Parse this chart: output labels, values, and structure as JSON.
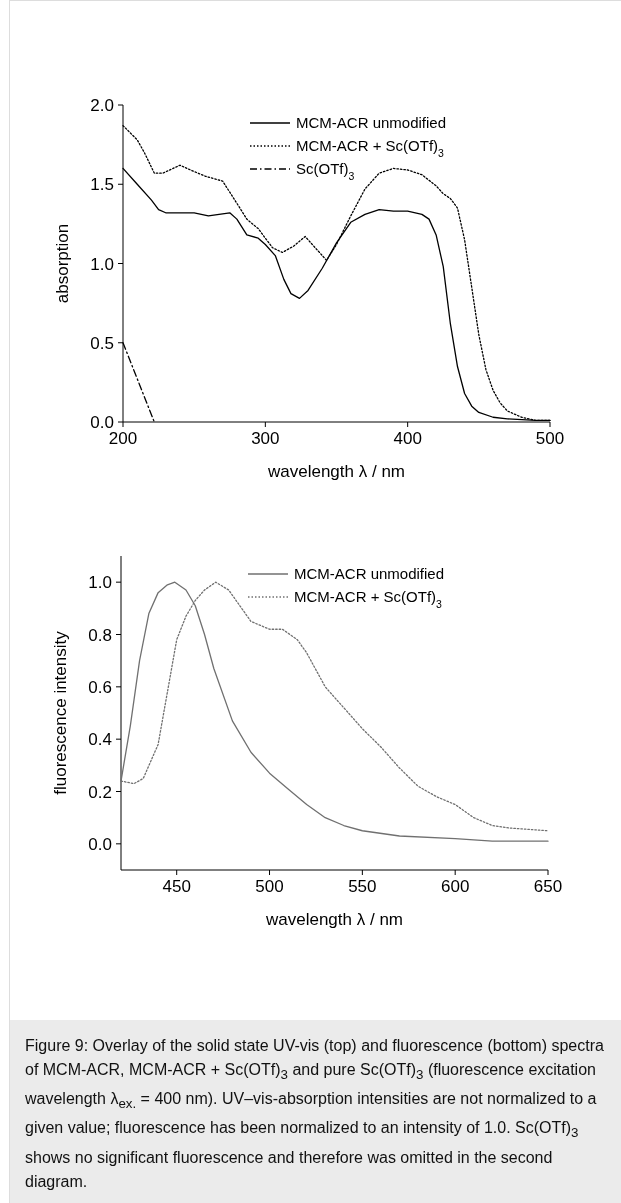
{
  "chart_data": [
    {
      "type": "line",
      "xlabel": "wavelength λ / nm",
      "ylabel": "absorption",
      "xlim": [
        200,
        500
      ],
      "ylim": [
        0,
        2.0
      ],
      "xticks": [
        200,
        300,
        400,
        500
      ],
      "yticks": [
        {
          "value": 0,
          "label": "0.0"
        },
        {
          "value": 0.5,
          "label": "0.5"
        },
        {
          "value": 1,
          "label": "1.0"
        },
        {
          "value": 1.5,
          "label": "1.5"
        },
        {
          "value": 2,
          "label": "2.0"
        }
      ],
      "legend": "top right",
      "grid": false,
      "series": [
        {
          "name": "MCM-ACR unmodified",
          "color": "#000000",
          "line_style": "solid",
          "x": [
            200,
            210,
            220,
            225,
            230,
            250,
            260,
            275,
            280,
            287,
            295,
            300,
            307,
            313,
            318,
            324,
            330,
            340,
            350,
            360,
            370,
            380,
            390,
            400,
            410,
            415,
            420,
            425,
            430,
            435,
            440,
            445,
            450,
            460,
            470,
            490,
            500
          ],
          "values": [
            1.6,
            1.5,
            1.4,
            1.34,
            1.32,
            1.32,
            1.3,
            1.32,
            1.28,
            1.18,
            1.16,
            1.12,
            1.05,
            0.9,
            0.81,
            0.78,
            0.83,
            0.97,
            1.13,
            1.26,
            1.31,
            1.34,
            1.33,
            1.33,
            1.31,
            1.28,
            1.18,
            0.98,
            0.62,
            0.35,
            0.18,
            0.1,
            0.06,
            0.03,
            0.02,
            0.01,
            0.01
          ]
        },
        {
          "name": "MCM-ACR + Sc(OTf)$_{3}$",
          "color": "#000000",
          "line_style": "dotted",
          "x": [
            200,
            210,
            215,
            222,
            228,
            240,
            250,
            258,
            270,
            280,
            287,
            295,
            305,
            312,
            320,
            328,
            335,
            343,
            350,
            360,
            370,
            380,
            390,
            400,
            410,
            420,
            425,
            430,
            435,
            440,
            445,
            450,
            455,
            460,
            465,
            470,
            480,
            490,
            500
          ],
          "values": [
            1.87,
            1.78,
            1.7,
            1.57,
            1.57,
            1.62,
            1.58,
            1.55,
            1.52,
            1.38,
            1.28,
            1.22,
            1.1,
            1.07,
            1.11,
            1.17,
            1.1,
            1.02,
            1.12,
            1.3,
            1.47,
            1.57,
            1.6,
            1.59,
            1.56,
            1.49,
            1.44,
            1.41,
            1.35,
            1.15,
            0.85,
            0.55,
            0.33,
            0.2,
            0.12,
            0.07,
            0.03,
            0.01,
            0.01
          ]
        },
        {
          "name": "Sc(OTf)$_{3}$",
          "color": "#000000",
          "line_style": "dashed",
          "x": [
            200,
            222
          ],
          "values": [
            0.5,
            0.0
          ]
        }
      ]
    },
    {
      "type": "line",
      "xlabel": "wavelength λ / nm",
      "ylabel": "fluorescence intensity",
      "xlim": [
        420,
        650
      ],
      "ylim": [
        -0.1,
        1.1
      ],
      "xticks": [
        450,
        500,
        550,
        600,
        650
      ],
      "yticks": [
        {
          "value": 0,
          "label": "0.0"
        },
        {
          "value": 0.2,
          "label": "0.2"
        },
        {
          "value": 0.4,
          "label": "0.4"
        },
        {
          "value": 0.6,
          "label": "0.6"
        },
        {
          "value": 0.8,
          "label": "0.8"
        },
        {
          "value": 1,
          "label": "1.0"
        }
      ],
      "legend": "top right",
      "grid": false,
      "series": [
        {
          "name": "MCM-ACR unmodified",
          "color": "#707070",
          "line_style": "solid",
          "x": [
            420,
            425,
            430,
            435,
            440,
            445,
            449,
            455,
            460,
            465,
            470,
            480,
            490,
            500,
            510,
            520,
            530,
            540,
            550,
            570,
            600,
            620,
            650
          ],
          "values": [
            0.24,
            0.45,
            0.7,
            0.88,
            0.96,
            0.99,
            1.0,
            0.97,
            0.91,
            0.8,
            0.67,
            0.47,
            0.35,
            0.27,
            0.21,
            0.15,
            0.1,
            0.07,
            0.05,
            0.03,
            0.02,
            0.01,
            0.01
          ]
        },
        {
          "name": "MCM-ACR + Sc(OTf)$_{3}$",
          "color": "#707070",
          "line_style": "dotted",
          "x": [
            420,
            427,
            432,
            440,
            445,
            450,
            455,
            460,
            465,
            471,
            478,
            485,
            490,
            500,
            507,
            515,
            520,
            530,
            540,
            550,
            560,
            570,
            580,
            590,
            600,
            610,
            620,
            630,
            650
          ],
          "values": [
            0.24,
            0.23,
            0.25,
            0.38,
            0.58,
            0.78,
            0.87,
            0.93,
            0.97,
            1.0,
            0.97,
            0.9,
            0.85,
            0.82,
            0.82,
            0.78,
            0.73,
            0.6,
            0.52,
            0.44,
            0.37,
            0.29,
            0.22,
            0.18,
            0.15,
            0.1,
            0.07,
            0.06,
            0.05
          ]
        }
      ],
      "annotations": [
        "Figure 9: Overlay of the solid state UV-vis (top) and fluorescence (bottom) spectra of MCM-ACR, MCM-ACR + Sc(OTf)$_{3}$ and pure Sc(OTf)$_{3}$ (fluorescence excitation wavelength λ$_{ex.}$ = 400 nm). UV–vis-absorption intensities are not normalized to a given value; fluorescence has been normalized to an intensity of 1.0. Sc(OTf)$_{3}$ shows no significant fluorescence and therefore was omitted in the second diagram."
      ]
    }
  ]
}
